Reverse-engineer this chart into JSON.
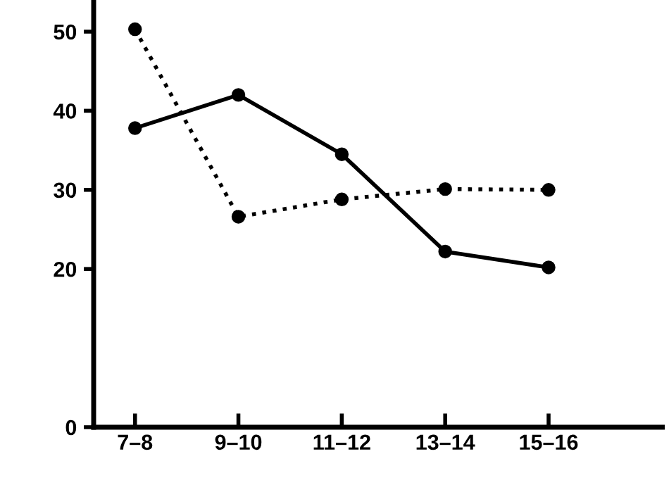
{
  "chart_data": {
    "type": "line",
    "categories": [
      "7–8",
      "9–10",
      "11–12",
      "13–14",
      "15–16"
    ],
    "series": [
      {
        "color": "#000000",
        "line_style": "solid",
        "values": [
          37.8,
          42.0,
          34.5,
          22.2,
          20.2
        ]
      },
      {
        "color": "#000000",
        "line_style": "dotted",
        "values": [
          50.3,
          26.6,
          28.8,
          30.1,
          30.0
        ]
      }
    ],
    "marker": "circle",
    "ylim": [
      0,
      54
    ],
    "yticks": [
      0,
      20,
      30,
      40,
      50
    ],
    "grid": false,
    "legend": false
  }
}
